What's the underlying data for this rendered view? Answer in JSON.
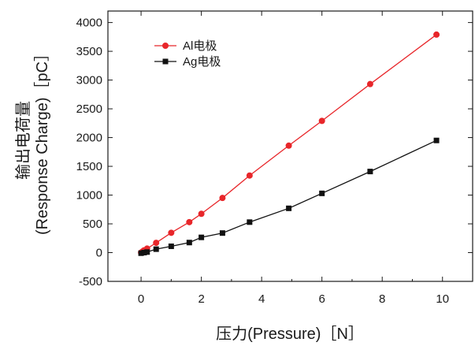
{
  "chart_data": {
    "type": "line",
    "xlabel": "压力(Pressure)［N］",
    "ylabel_line1": "输出电荷量",
    "ylabel_line2": "(Response Charge)［pC］",
    "xlim": [
      -1.1,
      11
    ],
    "ylim": [
      -500,
      4200
    ],
    "x_ticks": [
      0,
      2,
      4,
      6,
      8,
      10
    ],
    "y_ticks": [
      -500,
      0,
      500,
      1000,
      1500,
      2000,
      2500,
      3000,
      3500,
      4000
    ],
    "grid": false,
    "legend_position": "top-left",
    "series": [
      {
        "name": "Al电极",
        "color": "#e8262a",
        "marker": "circle",
        "points": [
          [
            0,
            0
          ],
          [
            0.05,
            20
          ],
          [
            0.1,
            40
          ],
          [
            0.2,
            70
          ],
          [
            0.5,
            170
          ],
          [
            1.0,
            345
          ],
          [
            1.6,
            530
          ],
          [
            2.0,
            675
          ],
          [
            2.7,
            950
          ],
          [
            3.6,
            1340
          ],
          [
            4.9,
            1860
          ],
          [
            6.0,
            2290
          ],
          [
            7.6,
            2930
          ],
          [
            9.8,
            3790
          ]
        ]
      },
      {
        "name": "Ag电极",
        "color": "#111111",
        "marker": "square",
        "points": [
          [
            0,
            -10
          ],
          [
            0.1,
            0
          ],
          [
            0.2,
            10
          ],
          [
            0.5,
            60
          ],
          [
            1.0,
            110
          ],
          [
            1.6,
            175
          ],
          [
            2.0,
            265
          ],
          [
            2.7,
            340
          ],
          [
            3.6,
            530
          ],
          [
            4.9,
            770
          ],
          [
            6.0,
            1030
          ],
          [
            7.6,
            1410
          ],
          [
            9.8,
            1950
          ]
        ]
      }
    ]
  }
}
